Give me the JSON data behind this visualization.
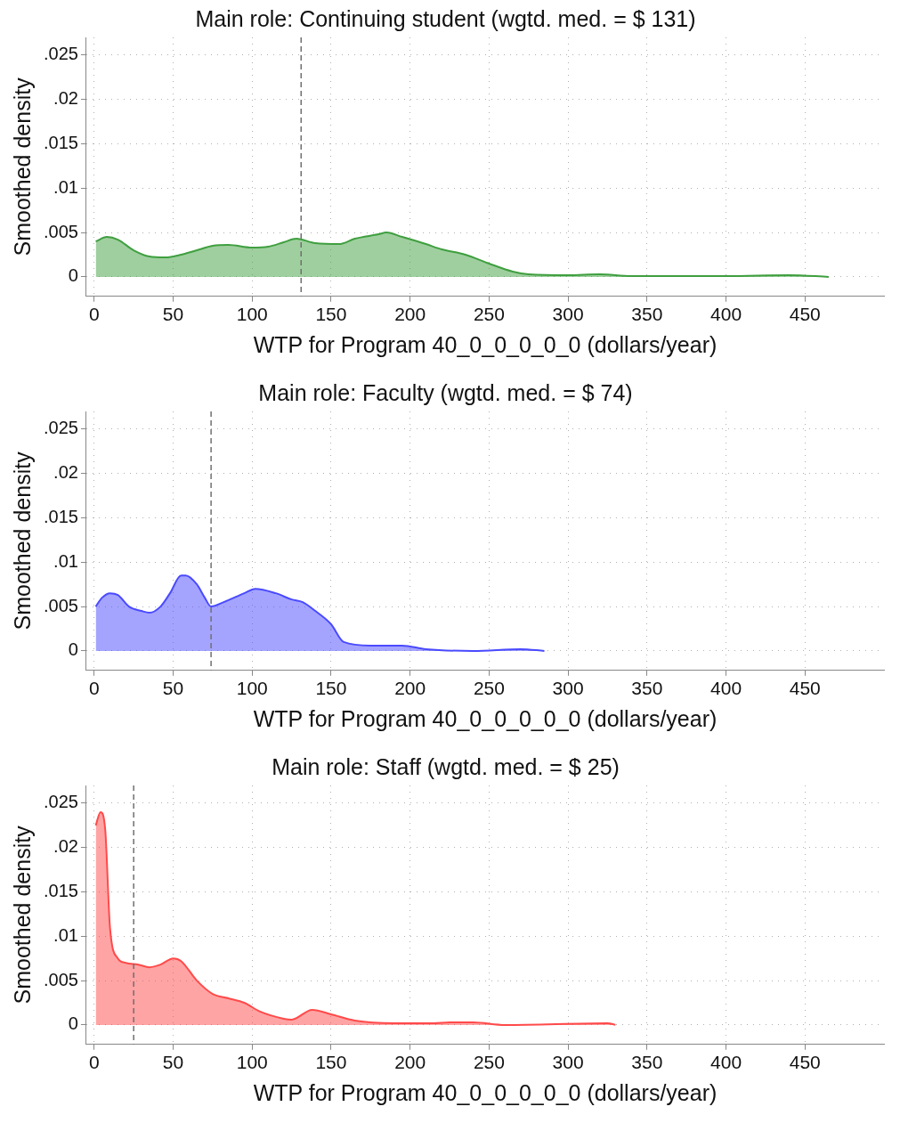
{
  "chart_data": [
    {
      "type": "area",
      "title": "Main role: Continuing student (wgtd. med. = $ 131)",
      "xlabel": "WTP for Program 40_0_0_0_0_0 (dollars/year)",
      "ylabel": "Smoothed density",
      "series": [
        {
          "color": "#3f9f3f",
          "x": [
            1,
            8,
            15,
            25,
            35,
            45,
            55,
            65,
            75,
            85,
            100,
            110,
            120,
            128,
            140,
            155,
            165,
            180,
            185,
            195,
            210,
            220,
            235,
            250,
            265,
            275,
            300,
            320,
            340,
            360,
            400,
            440,
            465
          ],
          "values": [
            0.004,
            0.0045,
            0.0042,
            0.003,
            0.0023,
            0.0022,
            0.0025,
            0.003,
            0.0035,
            0.0036,
            0.0033,
            0.0034,
            0.0039,
            0.0043,
            0.0038,
            0.0037,
            0.0043,
            0.0048,
            0.005,
            0.0045,
            0.0037,
            0.0031,
            0.0025,
            0.0015,
            0.0006,
            0.0003,
            0.0002,
            0.0003,
            0.0001,
            0.0001,
            0.0001,
            0.0002,
            0
          ]
        }
      ],
      "ref_lines": [
        {
          "axis": "x",
          "value": 131,
          "color": "#707070",
          "line_style": "dashed"
        }
      ],
      "xlim": [
        -5,
        500
      ],
      "xticks": [
        0,
        50,
        100,
        150,
        200,
        250,
        300,
        350,
        400,
        450
      ],
      "ylim": [
        -0.0022,
        0.027
      ],
      "yticks": [
        {
          "value": 0,
          "label": "0"
        },
        {
          "value": 0.005,
          "label": ".005"
        },
        {
          "value": 0.01,
          "label": ".01"
        },
        {
          "value": 0.015,
          "label": ".015"
        },
        {
          "value": 0.02,
          "label": ".02"
        },
        {
          "value": 0.025,
          "label": ".025"
        }
      ],
      "grid": true,
      "legend": false
    },
    {
      "type": "area",
      "title": "Main role: Faculty (wgtd. med. = $ 74)",
      "xlabel": "WTP for Program 40_0_0_0_0_0 (dollars/year)",
      "ylabel": "Smoothed density",
      "series": [
        {
          "color": "#4a4aff",
          "x": [
            1,
            5,
            10,
            15,
            22,
            30,
            35,
            42,
            48,
            55,
            58,
            65,
            70,
            74,
            82,
            95,
            102,
            115,
            125,
            132,
            140,
            150,
            158,
            175,
            195,
            210,
            240,
            270,
            285
          ],
          "values": [
            0.005,
            0.006,
            0.0065,
            0.0063,
            0.005,
            0.0045,
            0.0043,
            0.005,
            0.0065,
            0.0085,
            0.0085,
            0.0075,
            0.006,
            0.005,
            0.0055,
            0.0065,
            0.007,
            0.0065,
            0.0058,
            0.0055,
            0.0045,
            0.003,
            0.001,
            0.0006,
            0.0006,
            0.0002,
            0,
            0.0002,
            0
          ]
        }
      ],
      "ref_lines": [
        {
          "axis": "x",
          "value": 74,
          "color": "#707070",
          "line_style": "dashed"
        }
      ],
      "xlim": [
        -5,
        500
      ],
      "xticks": [
        0,
        50,
        100,
        150,
        200,
        250,
        300,
        350,
        400,
        450
      ],
      "ylim": [
        -0.0022,
        0.027
      ],
      "yticks": [
        {
          "value": 0,
          "label": "0"
        },
        {
          "value": 0.005,
          "label": ".005"
        },
        {
          "value": 0.01,
          "label": ".01"
        },
        {
          "value": 0.015,
          "label": ".015"
        },
        {
          "value": 0.02,
          "label": ".02"
        },
        {
          "value": 0.025,
          "label": ".025"
        }
      ],
      "grid": true,
      "legend": false
    },
    {
      "type": "area",
      "title": "Main role: Staff (wgtd. med. = $ 25)",
      "xlabel": "WTP for Program 40_0_0_0_0_0 (dollars/year)",
      "ylabel": "Smoothed density",
      "series": [
        {
          "color": "#ff4a4a",
          "x": [
            1,
            4,
            7,
            10,
            15,
            20,
            28,
            35,
            42,
            50,
            55,
            65,
            75,
            85,
            95,
            105,
            120,
            125,
            138,
            150,
            165,
            190,
            215,
            225,
            240,
            260,
            325,
            330
          ],
          "values": [
            0.0225,
            0.024,
            0.022,
            0.011,
            0.0075,
            0.007,
            0.0068,
            0.0065,
            0.0068,
            0.0075,
            0.0072,
            0.005,
            0.0035,
            0.003,
            0.0025,
            0.0015,
            0.0007,
            0.0006,
            0.0017,
            0.0012,
            0.0005,
            0.0002,
            0.0002,
            0.0003,
            0.0003,
            0,
            0.0002,
            0
          ]
        }
      ],
      "ref_lines": [
        {
          "axis": "x",
          "value": 25,
          "color": "#707070",
          "line_style": "dashed"
        }
      ],
      "xlim": [
        -5,
        500
      ],
      "xticks": [
        0,
        50,
        100,
        150,
        200,
        250,
        300,
        350,
        400,
        450
      ],
      "ylim": [
        -0.0022,
        0.027
      ],
      "yticks": [
        {
          "value": 0,
          "label": "0"
        },
        {
          "value": 0.005,
          "label": ".005"
        },
        {
          "value": 0.01,
          "label": ".01"
        },
        {
          "value": 0.015,
          "label": ".015"
        },
        {
          "value": 0.02,
          "label": ".02"
        },
        {
          "value": 0.025,
          "label": ".025"
        }
      ],
      "grid": true,
      "legend": false
    }
  ]
}
